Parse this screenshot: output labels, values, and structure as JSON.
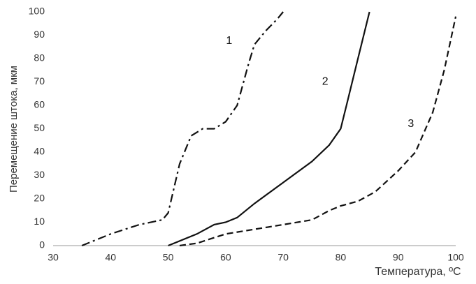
{
  "chart_data": {
    "type": "line",
    "x_label": "Температура, ºC",
    "y_label": "Перемещение штока, мкм",
    "xlim": [
      30,
      100
    ],
    "xticks": [
      30,
      40,
      50,
      60,
      70,
      80,
      90,
      100
    ],
    "ylim": [
      0,
      100
    ],
    "yticks": [
      0,
      10,
      20,
      30,
      40,
      50,
      60,
      70,
      80,
      90,
      100
    ],
    "grid": false,
    "series": [
      {
        "name": "1",
        "color": "#111111",
        "dash": "dashdot",
        "x": [
          35,
          40,
          45,
          49,
          50,
          52,
          54,
          56,
          58,
          60,
          62,
          64,
          65,
          67,
          69,
          70
        ],
        "values": [
          0,
          5,
          9,
          11,
          14,
          35,
          47,
          50,
          50,
          53,
          60,
          78,
          86,
          92,
          97,
          100
        ]
      },
      {
        "name": "2",
        "color": "#111111",
        "dash": "solid",
        "x": [
          50,
          55,
          58,
          60,
          62,
          65,
          70,
          75,
          78,
          80,
          81,
          83,
          85
        ],
        "values": [
          0,
          5,
          9,
          10,
          12,
          18,
          27,
          36,
          43,
          50,
          60,
          80,
          100
        ]
      },
      {
        "name": "3",
        "color": "#111111",
        "dash": "dashed",
        "x": [
          52,
          55,
          60,
          65,
          70,
          75,
          78,
          80,
          83,
          86,
          90,
          93,
          96,
          98,
          100
        ],
        "values": [
          0,
          1,
          5,
          7,
          9,
          11,
          15,
          17,
          19,
          23,
          32,
          40,
          57,
          75,
          98
        ]
      }
    ]
  }
}
